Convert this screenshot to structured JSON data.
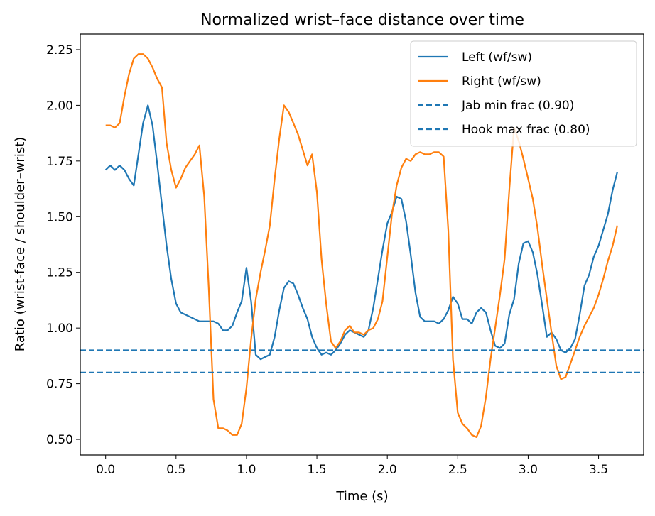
{
  "chart_data": {
    "type": "line",
    "title": "Normalized wrist–face distance over time",
    "xlabel": "Time (s)",
    "ylabel": "Ratio (wrist-face / shoulder–wrist)",
    "xlim": [
      -0.18,
      3.82
    ],
    "ylim": [
      0.43,
      2.32
    ],
    "xticks": [
      0.0,
      0.5,
      1.0,
      1.5,
      2.0,
      2.5,
      3.0,
      3.5
    ],
    "xtick_labels": [
      "0.0",
      "0.5",
      "1.0",
      "1.5",
      "2.0",
      "2.5",
      "3.0",
      "3.5"
    ],
    "yticks": [
      0.5,
      0.75,
      1.0,
      1.25,
      1.5,
      1.75,
      2.0,
      2.25
    ],
    "ytick_labels": [
      "0.50",
      "0.75",
      "1.00",
      "1.25",
      "1.50",
      "1.75",
      "2.00",
      "2.25"
    ],
    "grid": false,
    "legend_position": "top-right",
    "series": [
      {
        "name": "Left (wf/sw)",
        "color": "#1f77b4",
        "style": "solid",
        "x": [
          0.0,
          0.033,
          0.066,
          0.1,
          0.133,
          0.166,
          0.2,
          0.233,
          0.266,
          0.3,
          0.333,
          0.366,
          0.4,
          0.433,
          0.466,
          0.5,
          0.533,
          0.566,
          0.6,
          0.633,
          0.666,
          0.7,
          0.733,
          0.766,
          0.8,
          0.833,
          0.866,
          0.9,
          0.933,
          0.966,
          1.0,
          1.033,
          1.066,
          1.1,
          1.133,
          1.166,
          1.2,
          1.233,
          1.266,
          1.3,
          1.333,
          1.366,
          1.4,
          1.433,
          1.466,
          1.5,
          1.533,
          1.566,
          1.6,
          1.633,
          1.666,
          1.7,
          1.733,
          1.766,
          1.8,
          1.833,
          1.866,
          1.9,
          1.933,
          1.966,
          2.0,
          2.033,
          2.066,
          2.1,
          2.133,
          2.166,
          2.2,
          2.233,
          2.266,
          2.3,
          2.333,
          2.366,
          2.4,
          2.433,
          2.466,
          2.5,
          2.533,
          2.566,
          2.6,
          2.633,
          2.666,
          2.7,
          2.733,
          2.766,
          2.8,
          2.833,
          2.866,
          2.9,
          2.933,
          2.966,
          3.0,
          3.033,
          3.066,
          3.1,
          3.133,
          3.166,
          3.2,
          3.233,
          3.266,
          3.3,
          3.333,
          3.366,
          3.4,
          3.433,
          3.466,
          3.5,
          3.533,
          3.566,
          3.6,
          3.633
        ],
        "y": [
          1.71,
          1.73,
          1.71,
          1.73,
          1.71,
          1.67,
          1.64,
          1.78,
          1.92,
          2.0,
          1.91,
          1.74,
          1.55,
          1.37,
          1.22,
          1.11,
          1.07,
          1.06,
          1.05,
          1.04,
          1.03,
          1.03,
          1.03,
          1.03,
          1.02,
          0.99,
          0.99,
          1.01,
          1.07,
          1.12,
          1.27,
          1.12,
          0.88,
          0.86,
          0.87,
          0.88,
          0.96,
          1.08,
          1.18,
          1.21,
          1.2,
          1.15,
          1.09,
          1.04,
          0.96,
          0.91,
          0.88,
          0.89,
          0.88,
          0.9,
          0.93,
          0.97,
          0.99,
          0.98,
          0.97,
          0.96,
          0.99,
          1.09,
          1.22,
          1.35,
          1.47,
          1.52,
          1.59,
          1.58,
          1.48,
          1.33,
          1.16,
          1.05,
          1.03,
          1.03,
          1.03,
          1.02,
          1.04,
          1.08,
          1.14,
          1.11,
          1.04,
          1.04,
          1.02,
          1.07,
          1.09,
          1.07,
          0.99,
          0.92,
          0.91,
          0.93,
          1.06,
          1.13,
          1.29,
          1.38,
          1.39,
          1.34,
          1.24,
          1.1,
          0.96,
          0.98,
          0.95,
          0.9,
          0.89,
          0.91,
          0.95,
          1.06,
          1.19,
          1.24,
          1.32,
          1.37,
          1.44,
          1.51,
          1.62,
          1.7
        ]
      },
      {
        "name": "Right (wf/sw)",
        "color": "#ff7f0e",
        "style": "solid",
        "x": [
          0.0,
          0.033,
          0.066,
          0.1,
          0.133,
          0.166,
          0.2,
          0.233,
          0.266,
          0.3,
          0.333,
          0.366,
          0.4,
          0.433,
          0.466,
          0.5,
          0.533,
          0.566,
          0.6,
          0.633,
          0.666,
          0.7,
          0.733,
          0.766,
          0.8,
          0.833,
          0.866,
          0.9,
          0.933,
          0.966,
          1.0,
          1.033,
          1.066,
          1.1,
          1.133,
          1.166,
          1.2,
          1.233,
          1.266,
          1.3,
          1.333,
          1.366,
          1.4,
          1.433,
          1.466,
          1.5,
          1.533,
          1.566,
          1.6,
          1.633,
          1.666,
          1.7,
          1.733,
          1.766,
          1.8,
          1.833,
          1.866,
          1.9,
          1.933,
          1.966,
          2.0,
          2.033,
          2.066,
          2.1,
          2.133,
          2.166,
          2.2,
          2.233,
          2.266,
          2.3,
          2.333,
          2.366,
          2.4,
          2.433,
          2.466,
          2.5,
          2.533,
          2.566,
          2.6,
          2.633,
          2.666,
          2.7,
          2.733,
          2.766,
          2.8,
          2.833,
          2.866,
          2.9,
          2.933,
          2.966,
          3.0,
          3.033,
          3.066,
          3.1,
          3.133,
          3.166,
          3.2,
          3.233,
          3.266,
          3.3,
          3.333,
          3.366,
          3.4,
          3.433,
          3.466,
          3.5,
          3.533,
          3.566,
          3.6,
          3.633
        ],
        "y": [
          1.91,
          1.91,
          1.9,
          1.92,
          2.04,
          2.14,
          2.21,
          2.23,
          2.23,
          2.21,
          2.17,
          2.12,
          2.08,
          1.83,
          1.71,
          1.63,
          1.67,
          1.72,
          1.75,
          1.78,
          1.82,
          1.59,
          1.17,
          0.68,
          0.55,
          0.55,
          0.54,
          0.52,
          0.52,
          0.57,
          0.73,
          0.95,
          1.13,
          1.25,
          1.35,
          1.46,
          1.67,
          1.85,
          2.0,
          1.97,
          1.92,
          1.87,
          1.8,
          1.73,
          1.78,
          1.61,
          1.31,
          1.11,
          0.94,
          0.91,
          0.94,
          0.99,
          1.01,
          0.98,
          0.98,
          0.97,
          0.99,
          1.0,
          1.04,
          1.12,
          1.32,
          1.51,
          1.64,
          1.72,
          1.76,
          1.75,
          1.78,
          1.79,
          1.78,
          1.78,
          1.79,
          1.79,
          1.77,
          1.44,
          0.86,
          0.62,
          0.57,
          0.55,
          0.52,
          0.51,
          0.56,
          0.69,
          0.86,
          1.0,
          1.15,
          1.31,
          1.62,
          1.9,
          1.84,
          1.76,
          1.67,
          1.58,
          1.45,
          1.28,
          1.13,
          0.98,
          0.83,
          0.77,
          0.78,
          0.84,
          0.9,
          0.96,
          1.01,
          1.05,
          1.09,
          1.15,
          1.22,
          1.3,
          1.37,
          1.46
        ]
      },
      {
        "name": "Jab min frac (0.90)",
        "color": "#1f77b4",
        "style": "dashed",
        "hline": 0.9
      },
      {
        "name": "Hook max frac (0.80)",
        "color": "#1f77b4",
        "style": "dashed",
        "hline": 0.8
      }
    ]
  }
}
